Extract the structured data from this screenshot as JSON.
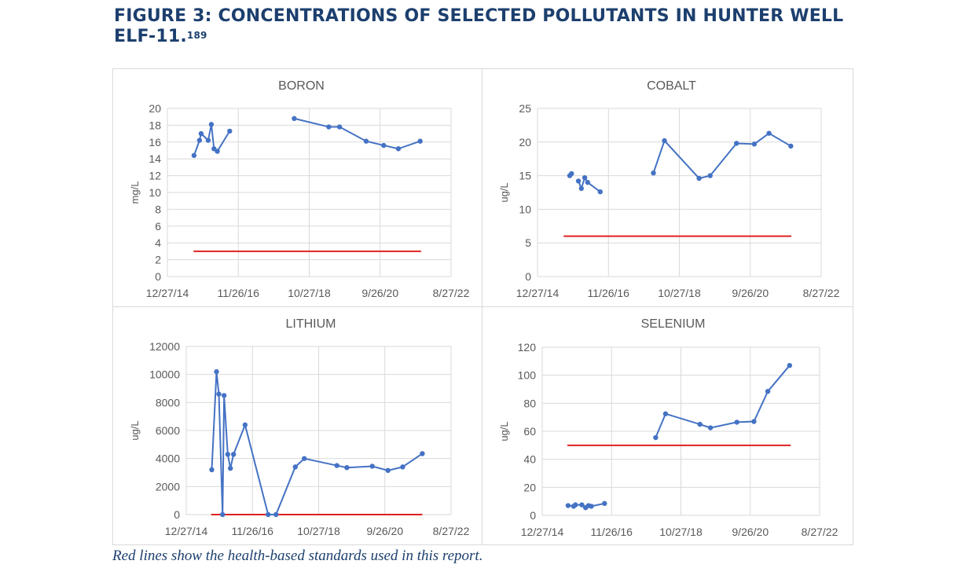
{
  "figure": {
    "title": "FIGURE 3: CONCENTRATIONS OF SELECTED POLLUTANTS IN HUNTER WELL ELF-11.",
    "footnote": "189",
    "caption": "Red lines show the health-based standards used in this report."
  },
  "colors": {
    "series": "#4472c4",
    "standard": "#e02020",
    "grid": "#d9d9d9",
    "title": "#1c3f6e"
  },
  "chart_data": [
    {
      "type": "line",
      "title": "BORON",
      "ylabel": "mg/L",
      "ylim": [
        0,
        20
      ],
      "yticks": [
        0,
        2,
        4,
        6,
        8,
        10,
        12,
        14,
        16,
        18,
        20
      ],
      "xlim": [
        "2014-12-27",
        "2022-08-27"
      ],
      "xticks": [
        "12/27/14",
        "11/26/16",
        "10/27/18",
        "9/26/20",
        "8/27/22"
      ],
      "grid": true,
      "segments": [
        [
          [
            "2015-09-16",
            14.4
          ],
          [
            "2015-11-09",
            16.2
          ],
          [
            "2015-11-25",
            17.0
          ],
          [
            "2016-02-03",
            16.2
          ],
          [
            "2016-03-05",
            18.1
          ],
          [
            "2016-03-31",
            15.2
          ],
          [
            "2016-05-03",
            14.9
          ],
          [
            "2016-09-02",
            17.3
          ]
        ],
        [
          [
            "2018-06-01",
            18.8
          ],
          [
            "2019-05-08",
            17.8
          ],
          [
            "2019-08-22",
            17.8
          ],
          [
            "2020-05-11",
            16.1
          ],
          [
            "2020-10-31",
            15.6
          ],
          [
            "2021-03-25",
            15.2
          ],
          [
            "2021-10-26",
            16.1
          ]
        ]
      ],
      "standard": {
        "value": 3,
        "start": "2015-09-11",
        "end": "2021-11-04"
      }
    },
    {
      "type": "line",
      "title": "COBALT",
      "ylabel": "ug/L",
      "ylim": [
        0,
        25
      ],
      "yticks": [
        0,
        5,
        10,
        15,
        20,
        25
      ],
      "xlim": [
        "2014-12-27",
        "2022-08-27"
      ],
      "xticks": [
        "12/27/14",
        "11/26/16",
        "10/27/18",
        "9/26/20",
        "8/27/22"
      ],
      "grid": true,
      "segments": [
        [
          [
            "2015-11-10",
            15.0
          ],
          [
            "2015-11-28",
            15.3
          ]
        ],
        [
          [
            "2016-02-04",
            14.2
          ],
          [
            "2016-03-04",
            13.1
          ],
          [
            "2016-04-06",
            14.7
          ],
          [
            "2016-05-05",
            14.0
          ],
          [
            "2016-09-06",
            12.6
          ]
        ],
        [
          [
            "2018-02-13",
            15.4
          ],
          [
            "2018-06-02",
            20.2
          ],
          [
            "2019-05-10",
            14.6
          ],
          [
            "2019-08-27",
            15.0
          ],
          [
            "2020-05-13",
            19.8
          ],
          [
            "2020-11-05",
            19.7
          ],
          [
            "2021-03-30",
            21.3
          ],
          [
            "2021-10-31",
            19.4
          ]
        ]
      ],
      "standard": {
        "value": 6,
        "start": "2015-09-11",
        "end": "2021-11-05"
      }
    },
    {
      "type": "line",
      "title": "LITHIUM",
      "ylabel": "ug/L",
      "ylim": [
        0,
        12000
      ],
      "yticks": [
        0,
        2000,
        4000,
        6000,
        8000,
        10000,
        12000
      ],
      "xlim": [
        "2014-12-27",
        "2022-08-27"
      ],
      "xticks": [
        "12/27/14",
        "11/26/16",
        "10/27/18",
        "9/26/20",
        "8/27/22"
      ],
      "grid": true,
      "segments": [
        [
          [
            "2015-09-23",
            3200
          ],
          [
            "2015-11-12",
            10200
          ],
          [
            "2015-12-07",
            8600
          ],
          [
            "2016-01-15",
            0
          ],
          [
            "2016-01-31",
            8500
          ],
          [
            "2016-03-10",
            4300
          ],
          [
            "2016-04-07",
            3300
          ],
          [
            "2016-05-10",
            4300
          ],
          [
            "2016-09-09",
            6400
          ],
          [
            "2017-05-11",
            0
          ],
          [
            "2017-08-02",
            0
          ],
          [
            "2018-02-22",
            3400
          ],
          [
            "2018-05-28",
            4000
          ],
          [
            "2019-05-08",
            3500
          ],
          [
            "2019-08-21",
            3350
          ],
          [
            "2020-05-16",
            3450
          ],
          [
            "2020-10-29",
            3150
          ],
          [
            "2021-04-02",
            3400
          ],
          [
            "2021-10-27",
            4350
          ]
        ]
      ],
      "standard": {
        "value": 0,
        "start": "2015-09-16",
        "end": "2021-10-27"
      }
    },
    {
      "type": "line",
      "title": "SELENIUM",
      "ylabel": "ug/L",
      "ylim": [
        0,
        120
      ],
      "yticks": [
        0,
        20,
        40,
        60,
        80,
        100,
        120
      ],
      "xlim": [
        "2014-12-27",
        "2022-08-27"
      ],
      "xticks": [
        "12/27/14",
        "11/26/16",
        "10/27/18",
        "9/26/20",
        "8/27/22"
      ],
      "grid": true,
      "segments": [
        [
          [
            "2015-09-14",
            7
          ],
          [
            "2015-11-09",
            6.5
          ],
          [
            "2015-11-27",
            7.5
          ],
          [
            "2016-01-31",
            7.5
          ],
          [
            "2016-03-09",
            5.5
          ],
          [
            "2016-04-07",
            7
          ],
          [
            "2016-05-06",
            6.5
          ],
          [
            "2016-09-16",
            8.5
          ]
        ],
        [
          [
            "2018-02-14",
            55.5
          ],
          [
            "2018-05-25",
            72.5
          ],
          [
            "2019-05-07",
            65
          ],
          [
            "2019-08-21",
            62.5
          ],
          [
            "2020-05-14",
            66.5
          ],
          [
            "2020-11-02",
            67
          ],
          [
            "2021-03-22",
            88.5
          ],
          [
            "2021-10-28",
            107
          ]
        ]
      ],
      "standard": {
        "value": 50,
        "start": "2015-09-07",
        "end": "2021-11-08"
      }
    }
  ]
}
